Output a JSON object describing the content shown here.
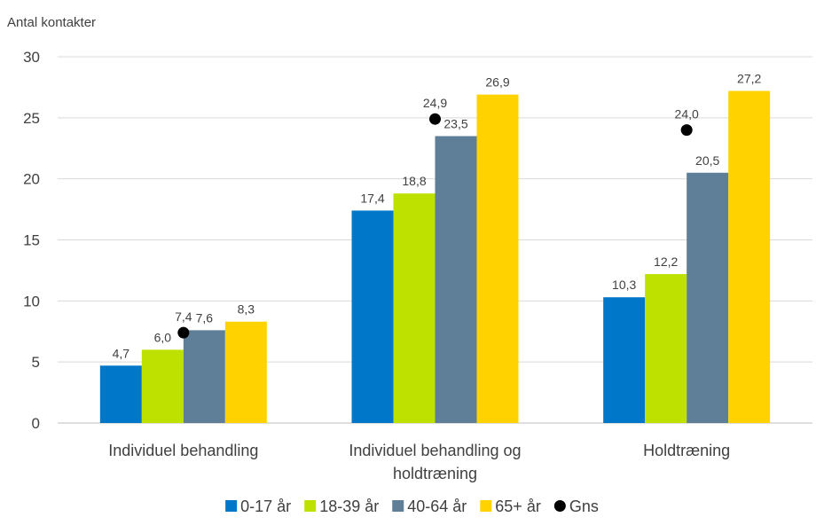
{
  "chart_data": {
    "type": "bar",
    "title": "",
    "ylabel": "Antal kontakter",
    "xlabel": "",
    "ylim": [
      0,
      30
    ],
    "yticks": [
      "0",
      "5",
      "10",
      "15",
      "20",
      "25",
      "30"
    ],
    "grid": true,
    "legend_position": "bottom",
    "categories": [
      [
        "Individuel behandling"
      ],
      [
        "Individuel behandling og",
        "holdtræning"
      ],
      [
        "Holdtræning"
      ]
    ],
    "series": [
      {
        "name": "0-17 år",
        "color": "#0077C8",
        "values": [
          4.7,
          17.4,
          10.3
        ],
        "labels": [
          "4,7",
          "17,4",
          "10,3"
        ]
      },
      {
        "name": "18-39 år",
        "color": "#BFE100",
        "values": [
          6.0,
          18.8,
          12.2
        ],
        "labels": [
          "6,0",
          "18,8",
          "12,2"
        ]
      },
      {
        "name": "40-64 år",
        "color": "#5E7F97",
        "values": [
          7.6,
          23.5,
          20.5
        ],
        "labels": [
          "7,6",
          "23,5",
          "20,5"
        ]
      },
      {
        "name": "65+ år",
        "color": "#FFD200",
        "values": [
          8.3,
          26.9,
          27.2
        ],
        "labels": [
          "8,3",
          "26,9",
          "27,2"
        ]
      }
    ],
    "average": {
      "name": "Gns",
      "color": "#000000",
      "values": [
        7.4,
        24.9,
        24.0
      ],
      "labels": [
        "7,4",
        "24,9",
        "24,0"
      ]
    }
  }
}
